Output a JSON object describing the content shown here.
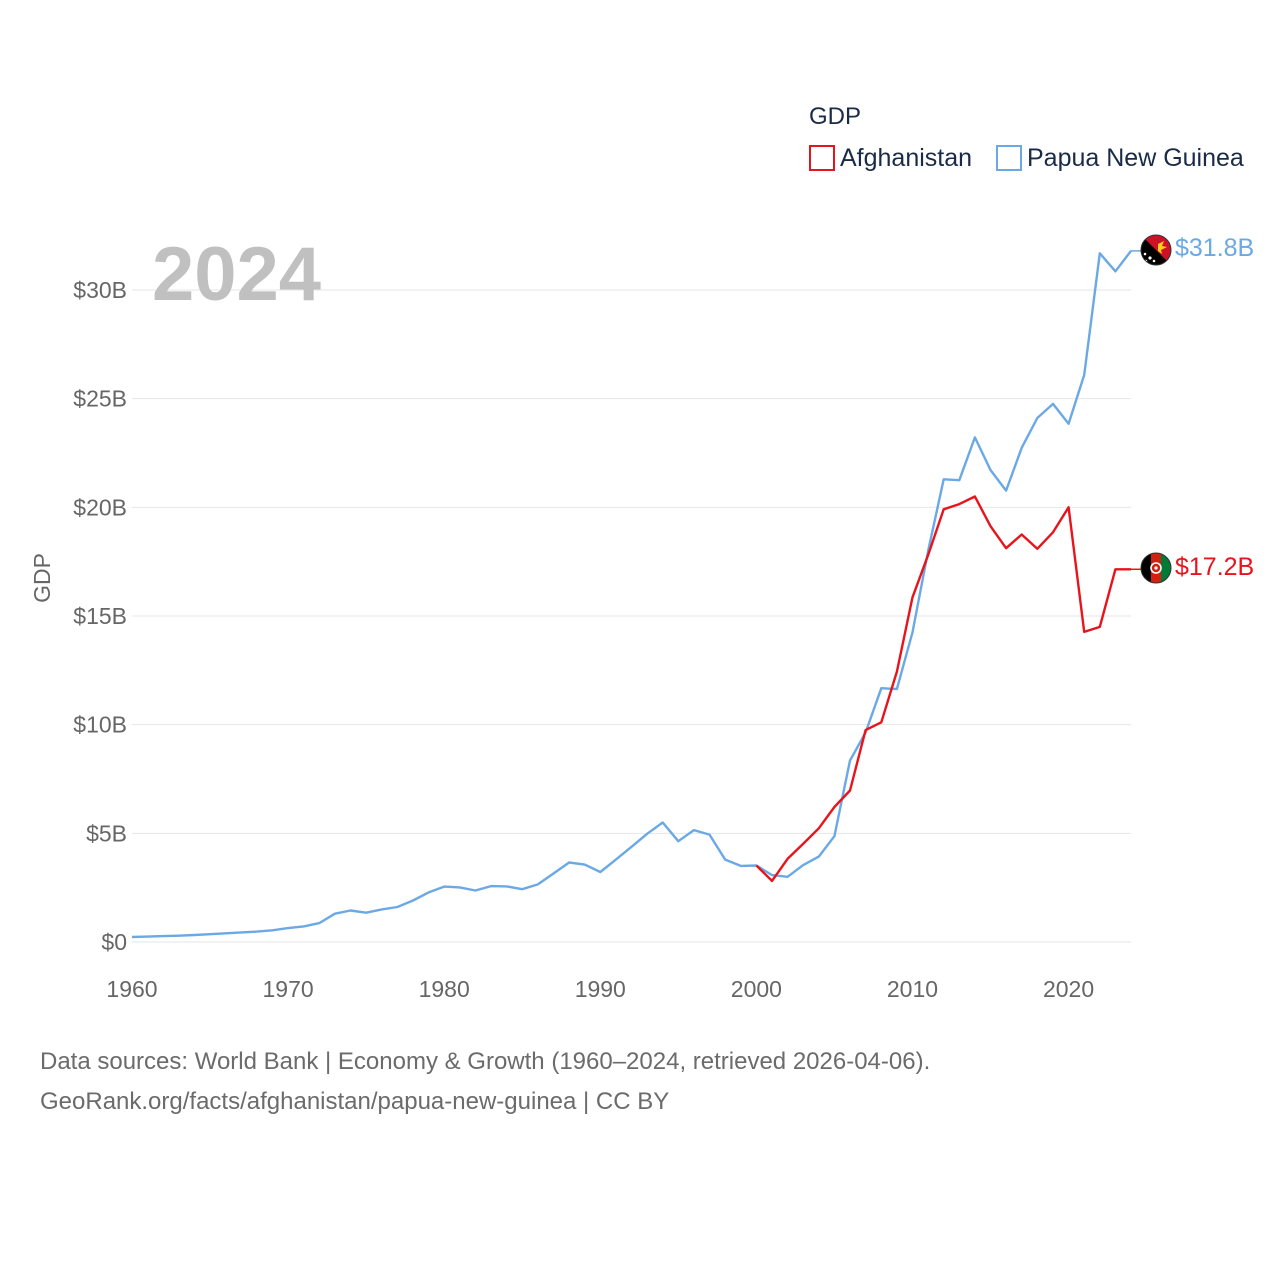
{
  "chart_data": {
    "type": "line",
    "title": "",
    "year_display": "2024",
    "xlabel": "",
    "ylabel": "GDP",
    "xlim": [
      1960,
      2024
    ],
    "ylim": [
      0,
      32500000000
    ],
    "x_ticks": [
      1960,
      1970,
      1980,
      1990,
      2000,
      2010,
      2020
    ],
    "y_ticks": [
      {
        "value": 0,
        "label": "$0"
      },
      {
        "value": 5000000000,
        "label": "$5B"
      },
      {
        "value": 10000000000,
        "label": "$10B"
      },
      {
        "value": 15000000000,
        "label": "$15B"
      },
      {
        "value": 20000000000,
        "label": "$20B"
      },
      {
        "value": 25000000000,
        "label": "$25B"
      },
      {
        "value": 30000000000,
        "label": "$30B"
      }
    ],
    "legend": {
      "title": "GDP",
      "position": "top-right"
    },
    "series": [
      {
        "name": "Afghanistan",
        "color": "#e8141c",
        "end_label": "$17.2B",
        "x": [
          2000,
          2001,
          2002,
          2003,
          2004,
          2005,
          2006,
          2007,
          2008,
          2009,
          2010,
          2011,
          2012,
          2013,
          2014,
          2015,
          2016,
          2017,
          2018,
          2019,
          2020,
          2021,
          2022,
          2023,
          2024
        ],
        "values": [
          3520000000,
          2810000000,
          3830000000,
          4520000000,
          5230000000,
          6210000000,
          6970000000,
          9750000000,
          10110000000,
          12440000000,
          15860000000,
          17800000000,
          19910000000,
          20150000000,
          20500000000,
          19130000000,
          18120000000,
          18750000000,
          18090000000,
          18850000000,
          20000000000,
          14270000000,
          14500000000,
          17150000000,
          17150000000
        ]
      },
      {
        "name": "Papua New Guinea",
        "color": "#6aa9e6",
        "end_label": "$31.8B",
        "x": [
          1960,
          1961,
          1962,
          1963,
          1964,
          1965,
          1966,
          1967,
          1968,
          1969,
          1970,
          1971,
          1972,
          1973,
          1974,
          1975,
          1976,
          1977,
          1978,
          1979,
          1980,
          1981,
          1982,
          1983,
          1984,
          1985,
          1986,
          1987,
          1988,
          1989,
          1990,
          1991,
          1992,
          1993,
          1994,
          1995,
          1996,
          1997,
          1998,
          1999,
          2000,
          2001,
          2002,
          2003,
          2004,
          2005,
          2006,
          2007,
          2008,
          2009,
          2010,
          2011,
          2012,
          2013,
          2014,
          2015,
          2016,
          2017,
          2018,
          2019,
          2020,
          2021,
          2022,
          2023,
          2024
        ],
        "values": [
          230000000,
          250000000,
          270000000,
          290000000,
          320000000,
          360000000,
          400000000,
          440000000,
          480000000,
          540000000,
          640000000,
          720000000,
          870000000,
          1300000000,
          1450000000,
          1350000000,
          1500000000,
          1610000000,
          1910000000,
          2280000000,
          2550000000,
          2510000000,
          2370000000,
          2570000000,
          2560000000,
          2430000000,
          2650000000,
          3150000000,
          3660000000,
          3560000000,
          3220000000,
          3790000000,
          4380000000,
          4980000000,
          5500000000,
          4640000000,
          5150000000,
          4940000000,
          3790000000,
          3500000000,
          3520000000,
          3080000000,
          3000000000,
          3540000000,
          3930000000,
          4870000000,
          8350000000,
          9640000000,
          11680000000,
          11640000000,
          14250000000,
          17990000000,
          21290000000,
          21250000000,
          23220000000,
          21720000000,
          20770000000,
          22740000000,
          24110000000,
          24760000000,
          23850000000,
          26090000000,
          31690000000,
          30860000000,
          31800000000
        ]
      }
    ]
  },
  "footer": {
    "line1": "Data sources: World Bank | Economy & Growth (1960–2024, retrieved 2026-04-06).",
    "line2": "GeoRank.org/facts/afghanistan/papua-new-guinea | CC BY"
  }
}
